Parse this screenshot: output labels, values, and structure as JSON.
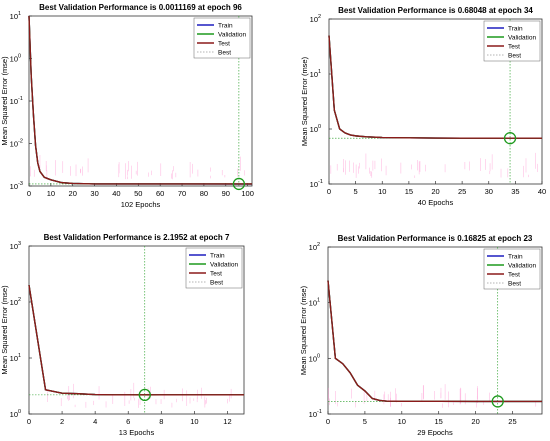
{
  "colors": {
    "train": "#1f1fbf",
    "validation": "#1e9a1e",
    "test": "#8b1a1a",
    "best": "#9a9a9a",
    "spike": "#ff88cc",
    "marker": "#1e9a1e",
    "axis": "#333333"
  },
  "chart_data": [
    {
      "type": "line",
      "title": "Best Validation Performance is 0.0011169 at epoch 96",
      "xlabel": "102 Epochs",
      "ylabel": "Mean Squared Error  (mse)",
      "yscale": "log",
      "xlim": [
        0,
        102
      ],
      "ylim": [
        0.001,
        10
      ],
      "xticks": [
        0,
        10,
        20,
        30,
        40,
        50,
        60,
        70,
        80,
        90,
        100
      ],
      "yticks": [
        0.001,
        0.01,
        0.1,
        1,
        10
      ],
      "ytick_labels": [
        [
          "10",
          "-3"
        ],
        [
          "10",
          "-2"
        ],
        [
          "10",
          "-1"
        ],
        [
          "10",
          "0"
        ],
        [
          "10",
          "1"
        ]
      ],
      "legend": [
        "Train",
        "Validation",
        "Test",
        "Best"
      ],
      "legend_position": "top-right",
      "best": {
        "epoch": 96,
        "value": 0.0011169
      },
      "series": [
        {
          "name": "Train",
          "x": [
            0,
            1,
            2,
            3,
            4,
            5,
            7,
            10,
            15,
            20,
            30,
            50,
            70,
            96,
            102
          ],
          "y": [
            10,
            0.4,
            0.05,
            0.009,
            0.0035,
            0.0022,
            0.0016,
            0.0014,
            0.0012,
            0.00115,
            0.00112,
            0.00112,
            0.00112,
            0.00111,
            0.00111
          ]
        },
        {
          "name": "Validation",
          "x": [
            0,
            1,
            2,
            3,
            4,
            5,
            7,
            10,
            15,
            20,
            30,
            50,
            70,
            96,
            102
          ],
          "y": [
            10,
            0.4,
            0.05,
            0.009,
            0.0035,
            0.0022,
            0.0016,
            0.0014,
            0.0012,
            0.00115,
            0.00112,
            0.00112,
            0.00112,
            0.0011169,
            0.00112
          ]
        },
        {
          "name": "Test",
          "x": [
            0,
            1,
            2,
            3,
            4,
            5,
            7,
            10,
            15,
            20,
            30,
            50,
            70,
            96,
            102
          ],
          "y": [
            10,
            0.4,
            0.05,
            0.009,
            0.0035,
            0.0022,
            0.0016,
            0.0014,
            0.0012,
            0.00115,
            0.00112,
            0.00112,
            0.00112,
            0.00112,
            0.00112
          ]
        }
      ]
    },
    {
      "type": "line",
      "title": "Best Validation Performance is 0.68048 at epoch 34",
      "xlabel": "40 Epochs",
      "ylabel": "Mean Squared Error  (mse)",
      "yscale": "log",
      "xlim": [
        0,
        40
      ],
      "ylim": [
        0.1,
        100
      ],
      "xticks": [
        0,
        5,
        10,
        15,
        20,
        25,
        30,
        35,
        40
      ],
      "yticks": [
        0.1,
        1,
        10,
        100
      ],
      "ytick_labels": [
        [
          "10",
          "-1"
        ],
        [
          "10",
          "0"
        ],
        [
          "10",
          "1"
        ],
        [
          "10",
          "2"
        ]
      ],
      "legend": [
        "Train",
        "Validation",
        "Test",
        "Best"
      ],
      "legend_position": "top-right",
      "best": {
        "epoch": 34,
        "value": 0.68048
      },
      "series": [
        {
          "name": "Train",
          "x": [
            0,
            1,
            2,
            3,
            4,
            5,
            7,
            10,
            15,
            20,
            25,
            30,
            34,
            40
          ],
          "y": [
            50,
            2.2,
            1.0,
            0.85,
            0.78,
            0.75,
            0.72,
            0.7,
            0.69,
            0.685,
            0.682,
            0.681,
            0.68,
            0.68
          ]
        },
        {
          "name": "Validation",
          "x": [
            0,
            1,
            2,
            3,
            4,
            5,
            7,
            10,
            15,
            20,
            25,
            30,
            34,
            40
          ],
          "y": [
            50,
            2.2,
            1.0,
            0.85,
            0.78,
            0.75,
            0.72,
            0.7,
            0.69,
            0.685,
            0.682,
            0.681,
            0.68048,
            0.68
          ]
        },
        {
          "name": "Test",
          "x": [
            0,
            1,
            2,
            3,
            4,
            5,
            7,
            10,
            15,
            20,
            25,
            30,
            34,
            40
          ],
          "y": [
            50,
            2.2,
            1.0,
            0.85,
            0.78,
            0.75,
            0.72,
            0.7,
            0.69,
            0.685,
            0.682,
            0.681,
            0.68,
            0.68
          ]
        }
      ]
    },
    {
      "type": "line",
      "title": "Best Validation Performance is 2.1952 at epoch 7",
      "xlabel": "13 Epochs",
      "ylabel": "Mean Squared Error  (mse)",
      "yscale": "log",
      "xlim": [
        0,
        13
      ],
      "ylim": [
        1,
        1000
      ],
      "xticks": [
        0,
        2,
        4,
        6,
        8,
        10,
        12
      ],
      "yticks": [
        1,
        10,
        100,
        1000
      ],
      "ytick_labels": [
        [
          "10",
          "0"
        ],
        [
          "10",
          "1"
        ],
        [
          "10",
          "2"
        ],
        [
          "10",
          "3"
        ]
      ],
      "legend": [
        "Train",
        "Validation",
        "Test",
        "Best"
      ],
      "legend_position": "top-right",
      "best": {
        "epoch": 7,
        "value": 2.1952
      },
      "series": [
        {
          "name": "Train",
          "x": [
            0,
            1,
            2,
            3,
            4,
            5,
            6,
            7,
            8,
            9,
            10,
            11,
            12,
            13
          ],
          "y": [
            200,
            2.7,
            2.35,
            2.3,
            2.22,
            2.2,
            2.2,
            2.2,
            2.2,
            2.2,
            2.2,
            2.2,
            2.2,
            2.2
          ]
        },
        {
          "name": "Validation",
          "x": [
            0,
            1,
            2,
            3,
            4,
            5,
            6,
            7,
            8,
            9,
            10,
            11,
            12,
            13
          ],
          "y": [
            200,
            2.7,
            2.35,
            2.3,
            2.22,
            2.2,
            2.2,
            2.1952,
            2.2,
            2.2,
            2.2,
            2.2,
            2.2,
            2.2
          ]
        },
        {
          "name": "Test",
          "x": [
            0,
            1,
            2,
            3,
            4,
            5,
            6,
            7,
            8,
            9,
            10,
            11,
            12,
            13
          ],
          "y": [
            200,
            2.7,
            2.35,
            2.3,
            2.22,
            2.2,
            2.2,
            2.2,
            2.2,
            2.2,
            2.2,
            2.2,
            2.2,
            2.2
          ]
        }
      ]
    },
    {
      "type": "line",
      "title": "Best Validation Performance is 0.16825 at epoch 23",
      "xlabel": "29 Epochs",
      "ylabel": "Mean Squared Error  (mse)",
      "yscale": "log",
      "xlim": [
        0,
        29
      ],
      "ylim": [
        0.1,
        100
      ],
      "xticks": [
        0,
        5,
        10,
        15,
        20,
        25
      ],
      "yticks": [
        0.1,
        1,
        10,
        100
      ],
      "ytick_labels": [
        [
          "10",
          "-1"
        ],
        [
          "10",
          "0"
        ],
        [
          "10",
          "1"
        ],
        [
          "10",
          "2"
        ]
      ],
      "legend": [
        "Train",
        "Validation",
        "Test",
        "Best"
      ],
      "legend_position": "top-right",
      "best": {
        "epoch": 23,
        "value": 0.16825
      },
      "series": [
        {
          "name": "Train",
          "x": [
            0,
            1,
            2,
            3,
            4,
            5,
            6,
            7,
            8,
            9,
            10,
            15,
            20,
            23,
            25,
            29
          ],
          "y": [
            25,
            1.0,
            0.8,
            0.55,
            0.33,
            0.26,
            0.19,
            0.175,
            0.17,
            0.17,
            0.169,
            0.169,
            0.1685,
            0.168,
            0.168,
            0.168
          ]
        },
        {
          "name": "Validation",
          "x": [
            0,
            1,
            2,
            3,
            4,
            5,
            6,
            7,
            8,
            9,
            10,
            15,
            20,
            23,
            25,
            29
          ],
          "y": [
            25,
            1.0,
            0.8,
            0.55,
            0.33,
            0.26,
            0.19,
            0.175,
            0.17,
            0.17,
            0.169,
            0.169,
            0.1685,
            0.16825,
            0.168,
            0.168
          ]
        },
        {
          "name": "Test",
          "x": [
            0,
            1,
            2,
            3,
            4,
            5,
            6,
            7,
            8,
            9,
            10,
            15,
            20,
            23,
            25,
            29
          ],
          "y": [
            25,
            1.0,
            0.8,
            0.55,
            0.33,
            0.26,
            0.19,
            0.175,
            0.17,
            0.17,
            0.169,
            0.169,
            0.1685,
            0.168,
            0.168,
            0.168
          ]
        }
      ]
    }
  ]
}
